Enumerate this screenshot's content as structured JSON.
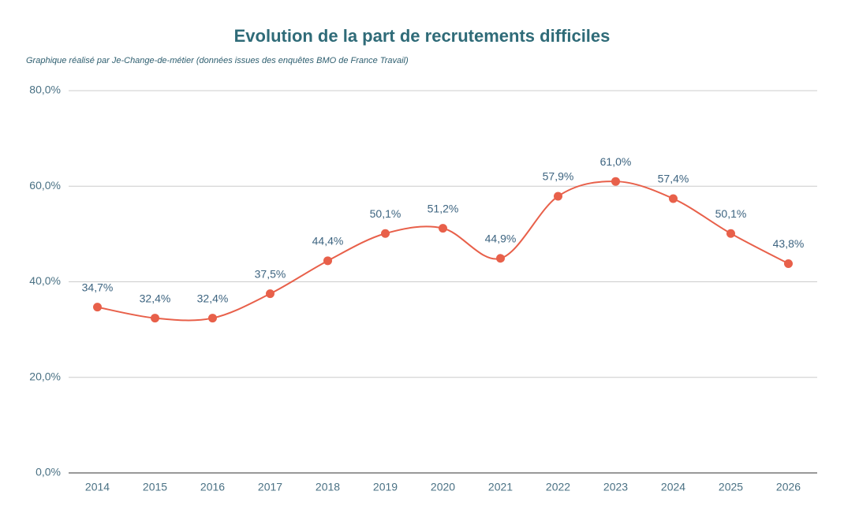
{
  "chart_data": {
    "type": "line",
    "title": "Evolution de la part de recrutements difficiles",
    "subtitle": "Graphique réalisé par Je-Change-de-métier (données issues des enquêtes BMO de France Travail)",
    "categories": [
      "2014",
      "2015",
      "2016",
      "2017",
      "2018",
      "2019",
      "2020",
      "2021",
      "2022",
      "2023",
      "2024",
      "2025",
      "2026"
    ],
    "series": [
      {
        "color": "#e8604a",
        "values": [
          34.7,
          32.4,
          32.4,
          37.5,
          44.4,
          50.1,
          51.2,
          44.9,
          57.9,
          61.0,
          57.4,
          50.1,
          43.8
        ],
        "value_labels": [
          "34,7%",
          "32,4%",
          "32,4%",
          "37,5%",
          "44,4%",
          "50,1%",
          "51,2%",
          "44,9%",
          "57,9%",
          "61,0%",
          "57,4%",
          "50,1%",
          "43,8%"
        ]
      }
    ],
    "ylim": [
      0,
      80
    ],
    "yticks": [
      {
        "value": 0,
        "label": "0,0%"
      },
      {
        "value": 20,
        "label": "20,0%"
      },
      {
        "value": 40,
        "label": "40,0%"
      },
      {
        "value": 60,
        "label": "60,0%"
      },
      {
        "value": 80,
        "label": "80,0%"
      }
    ],
    "grid": true
  }
}
